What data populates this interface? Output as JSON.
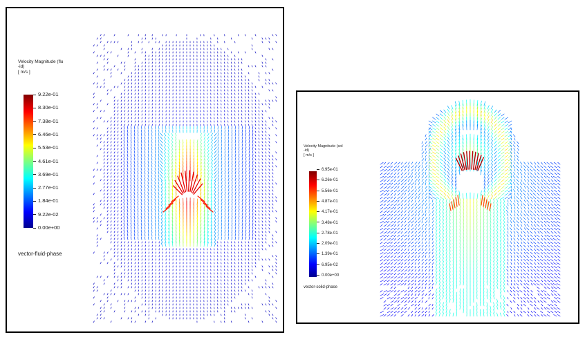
{
  "panels": [
    {
      "legend_title": "Velocity Magnitude (flu\n-id)\n[ m/s ]",
      "ticks": [
        "9.22e-01",
        "8.30e-01",
        "7.38e-01",
        "6.46e-01",
        "5.53e-01",
        "4.61e-01",
        "3.69e-01",
        "2.77e-01",
        "1.84e-01",
        "9.22e-02",
        "0.00e+00"
      ],
      "caption": "vector-fluid-phase",
      "colormap": "jet",
      "vmax": 0.922
    },
    {
      "legend_title": "Velocity Magnitude (sol\n-id)\n[ m/s ]",
      "ticks": [
        "6.95e-01",
        "6.26e-01",
        "5.56e-01",
        "4.87e-01",
        "4.17e-01",
        "3.48e-01",
        "2.78e-01",
        "2.09e-01",
        "1.39e-01",
        "6.95e-02",
        "0.00e+00"
      ],
      "caption": "vector-solid-phase",
      "colormap": "jet",
      "vmax": 0.695
    }
  ]
}
